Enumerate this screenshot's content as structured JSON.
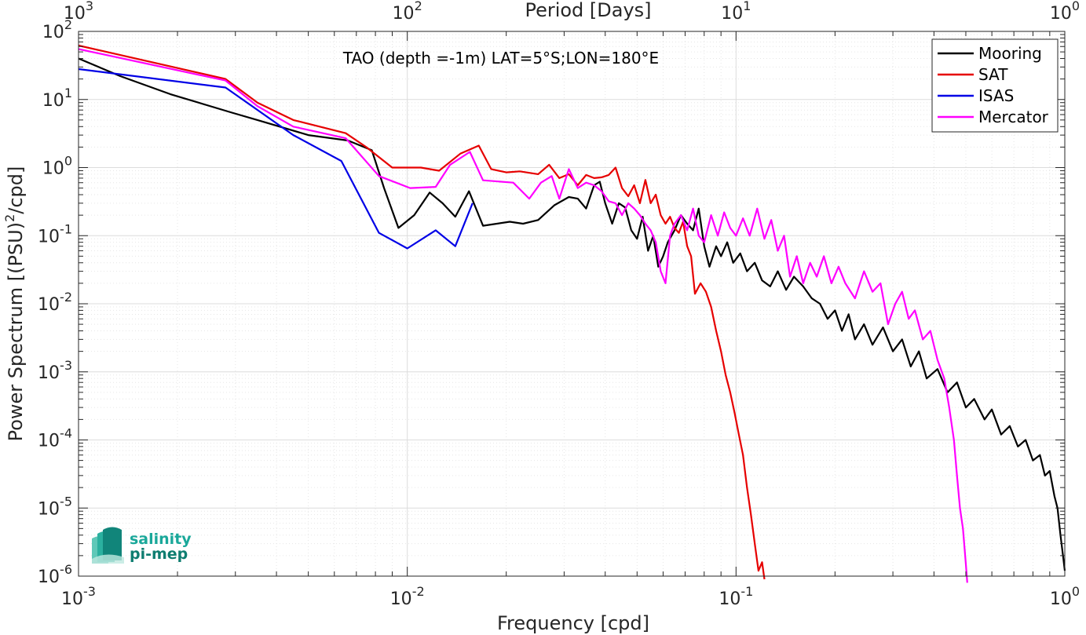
{
  "chart_data": {
    "type": "line",
    "title": "TAO (depth =-1m) LAT=5°S;LON=180°E",
    "xlabel": "Frequency [cpd]",
    "ylabel_main": "Power Spectrum [(PSU)",
    "ylabel_sup": "2",
    "ylabel_tail": "/cpd]",
    "top_xlabel": "Period [Days]",
    "x_scale": "log",
    "y_scale": "log",
    "xlim": [
      0.001,
      1
    ],
    "ylim": [
      1e-06,
      100
    ],
    "grid": true,
    "legend_position": "top-right",
    "x_ticks": [
      {
        "value": 0.001,
        "base": "10",
        "exp": "-3"
      },
      {
        "value": 0.01,
        "base": "10",
        "exp": "-2"
      },
      {
        "value": 0.1,
        "base": "10",
        "exp": "-1"
      },
      {
        "value": 1,
        "base": "10",
        "exp": "0"
      }
    ],
    "top_ticks": [
      {
        "value": 0.001,
        "base": "10",
        "exp": "3"
      },
      {
        "value": 0.01,
        "base": "10",
        "exp": "2"
      },
      {
        "value": 0.1,
        "base": "10",
        "exp": "1"
      },
      {
        "value": 1,
        "base": "10",
        "exp": "0"
      }
    ],
    "y_ticks": [
      {
        "value": 1e-06,
        "base": "10",
        "exp": "-6"
      },
      {
        "value": 1e-05,
        "base": "10",
        "exp": "-5"
      },
      {
        "value": 0.0001,
        "base": "10",
        "exp": "-4"
      },
      {
        "value": 0.001,
        "base": "10",
        "exp": "-3"
      },
      {
        "value": 0.01,
        "base": "10",
        "exp": "-2"
      },
      {
        "value": 0.1,
        "base": "10",
        "exp": "-1"
      },
      {
        "value": 1,
        "base": "10",
        "exp": "0"
      },
      {
        "value": 10,
        "base": "10",
        "exp": "1"
      },
      {
        "value": 100,
        "base": "10",
        "exp": "2"
      }
    ],
    "series": [
      {
        "name": "Mooring",
        "color": "#000000",
        "points": [
          [
            0.001,
            40
          ],
          [
            0.00134,
            22
          ],
          [
            0.0019,
            12
          ],
          [
            0.0029,
            6.5
          ],
          [
            0.0035,
            5
          ],
          [
            0.005,
            3
          ],
          [
            0.0066,
            2.5
          ],
          [
            0.0078,
            1.8
          ],
          [
            0.0085,
            0.5
          ],
          [
            0.0094,
            0.13
          ],
          [
            0.0105,
            0.2
          ],
          [
            0.0117,
            0.43
          ],
          [
            0.0128,
            0.3
          ],
          [
            0.014,
            0.19
          ],
          [
            0.0154,
            0.45
          ],
          [
            0.017,
            0.14
          ],
          [
            0.0205,
            0.16
          ],
          [
            0.0225,
            0.15
          ],
          [
            0.025,
            0.17
          ],
          [
            0.028,
            0.28
          ],
          [
            0.031,
            0.37
          ],
          [
            0.033,
            0.35
          ],
          [
            0.035,
            0.25
          ],
          [
            0.037,
            0.55
          ],
          [
            0.0385,
            0.62
          ],
          [
            0.04,
            0.3
          ],
          [
            0.042,
            0.15
          ],
          [
            0.044,
            0.3
          ],
          [
            0.046,
            0.26
          ],
          [
            0.048,
            0.12
          ],
          [
            0.05,
            0.09
          ],
          [
            0.052,
            0.19
          ],
          [
            0.054,
            0.06
          ],
          [
            0.056,
            0.1
          ],
          [
            0.058,
            0.035
          ],
          [
            0.06,
            0.05
          ],
          [
            0.062,
            0.08
          ],
          [
            0.065,
            0.12
          ],
          [
            0.068,
            0.2
          ],
          [
            0.071,
            0.15
          ],
          [
            0.074,
            0.12
          ],
          [
            0.077,
            0.25
          ],
          [
            0.08,
            0.07
          ],
          [
            0.083,
            0.035
          ],
          [
            0.087,
            0.07
          ],
          [
            0.09,
            0.05
          ],
          [
            0.094,
            0.08
          ],
          [
            0.098,
            0.04
          ],
          [
            0.103,
            0.055
          ],
          [
            0.108,
            0.03
          ],
          [
            0.114,
            0.04
          ],
          [
            0.12,
            0.022
          ],
          [
            0.127,
            0.018
          ],
          [
            0.134,
            0.03
          ],
          [
            0.142,
            0.016
          ],
          [
            0.15,
            0.025
          ],
          [
            0.16,
            0.018
          ],
          [
            0.17,
            0.012
          ],
          [
            0.18,
            0.01
          ],
          [
            0.19,
            0.006
          ],
          [
            0.2,
            0.008
          ],
          [
            0.21,
            0.004
          ],
          [
            0.22,
            0.007
          ],
          [
            0.23,
            0.003
          ],
          [
            0.245,
            0.005
          ],
          [
            0.26,
            0.0025
          ],
          [
            0.28,
            0.0045
          ],
          [
            0.3,
            0.002
          ],
          [
            0.32,
            0.003
          ],
          [
            0.34,
            0.0012
          ],
          [
            0.36,
            0.002
          ],
          [
            0.38,
            0.0008
          ],
          [
            0.41,
            0.0011
          ],
          [
            0.44,
            0.0005
          ],
          [
            0.47,
            0.0007
          ],
          [
            0.5,
            0.0003
          ],
          [
            0.53,
            0.0004
          ],
          [
            0.57,
            0.0002
          ],
          [
            0.6,
            0.00028
          ],
          [
            0.64,
            0.00012
          ],
          [
            0.68,
            0.00016
          ],
          [
            0.72,
            8e-05
          ],
          [
            0.76,
            0.0001
          ],
          [
            0.8,
            5e-05
          ],
          [
            0.84,
            6e-05
          ],
          [
            0.87,
            3e-05
          ],
          [
            0.9,
            3.5e-05
          ],
          [
            0.93,
            1.5e-05
          ],
          [
            0.95,
            1e-05
          ],
          [
            0.97,
            4e-06
          ],
          [
            0.99,
            1.8e-06
          ],
          [
            1.0,
            1.2e-06
          ]
        ]
      },
      {
        "name": "SAT",
        "color": "#e60000",
        "points": [
          [
            0.001,
            62
          ],
          [
            0.0028,
            20
          ],
          [
            0.0035,
            9
          ],
          [
            0.0045,
            5
          ],
          [
            0.0065,
            3.2
          ],
          [
            0.0075,
            2
          ],
          [
            0.009,
            1
          ],
          [
            0.0105,
            1
          ],
          [
            0.011,
            1
          ],
          [
            0.0125,
            0.9
          ],
          [
            0.0145,
            1.6
          ],
          [
            0.0165,
            2.1
          ],
          [
            0.018,
            0.95
          ],
          [
            0.02,
            0.85
          ],
          [
            0.022,
            0.88
          ],
          [
            0.025,
            0.8
          ],
          [
            0.027,
            1.1
          ],
          [
            0.029,
            0.7
          ],
          [
            0.031,
            0.8
          ],
          [
            0.033,
            0.55
          ],
          [
            0.035,
            0.78
          ],
          [
            0.037,
            0.7
          ],
          [
            0.039,
            0.72
          ],
          [
            0.041,
            0.78
          ],
          [
            0.043,
            1.0
          ],
          [
            0.045,
            0.5
          ],
          [
            0.047,
            0.38
          ],
          [
            0.049,
            0.55
          ],
          [
            0.051,
            0.3
          ],
          [
            0.053,
            0.66
          ],
          [
            0.055,
            0.3
          ],
          [
            0.057,
            0.4
          ],
          [
            0.059,
            0.2
          ],
          [
            0.061,
            0.15
          ],
          [
            0.063,
            0.19
          ],
          [
            0.065,
            0.13
          ],
          [
            0.067,
            0.11
          ],
          [
            0.069,
            0.16
          ],
          [
            0.071,
            0.07
          ],
          [
            0.073,
            0.05
          ],
          [
            0.075,
            0.014
          ],
          [
            0.078,
            0.02
          ],
          [
            0.081,
            0.015
          ],
          [
            0.084,
            0.009
          ],
          [
            0.087,
            0.004
          ],
          [
            0.09,
            0.002
          ],
          [
            0.093,
            0.0009
          ],
          [
            0.096,
            0.0005
          ],
          [
            0.099,
            0.00025
          ],
          [
            0.102,
            0.00012
          ],
          [
            0.105,
            6e-05
          ],
          [
            0.108,
            2e-05
          ],
          [
            0.111,
            8e-06
          ],
          [
            0.114,
            3e-06
          ],
          [
            0.117,
            1.2e-06
          ],
          [
            0.12,
            1.6e-06
          ],
          [
            0.122,
            9e-07
          ]
        ]
      },
      {
        "name": "ISAS",
        "color": "#0000e6",
        "points": [
          [
            0.001,
            28
          ],
          [
            0.0028,
            15
          ],
          [
            0.0045,
            3
          ],
          [
            0.0063,
            1.25
          ],
          [
            0.0082,
            0.11
          ],
          [
            0.01,
            0.065
          ],
          [
            0.0122,
            0.12
          ],
          [
            0.014,
            0.07
          ],
          [
            0.0158,
            0.3
          ]
        ]
      },
      {
        "name": "Mercator",
        "color": "#ff00ff",
        "points": [
          [
            0.001,
            55
          ],
          [
            0.0028,
            19
          ],
          [
            0.0035,
            8
          ],
          [
            0.0045,
            4
          ],
          [
            0.0065,
            2.7
          ],
          [
            0.0082,
            0.75
          ],
          [
            0.0102,
            0.5
          ],
          [
            0.0122,
            0.52
          ],
          [
            0.0135,
            1.1
          ],
          [
            0.0155,
            1.7
          ],
          [
            0.017,
            0.65
          ],
          [
            0.021,
            0.6
          ],
          [
            0.0235,
            0.35
          ],
          [
            0.0255,
            0.6
          ],
          [
            0.0275,
            0.75
          ],
          [
            0.029,
            0.35
          ],
          [
            0.031,
            0.95
          ],
          [
            0.033,
            0.5
          ],
          [
            0.035,
            0.6
          ],
          [
            0.037,
            0.55
          ],
          [
            0.039,
            0.45
          ],
          [
            0.041,
            0.32
          ],
          [
            0.043,
            0.3
          ],
          [
            0.045,
            0.2
          ],
          [
            0.047,
            0.3
          ],
          [
            0.049,
            0.25
          ],
          [
            0.051,
            0.2
          ],
          [
            0.053,
            0.15
          ],
          [
            0.055,
            0.12
          ],
          [
            0.057,
            0.08
          ],
          [
            0.059,
            0.03
          ],
          [
            0.061,
            0.02
          ],
          [
            0.063,
            0.1
          ],
          [
            0.065,
            0.15
          ],
          [
            0.068,
            0.2
          ],
          [
            0.071,
            0.12
          ],
          [
            0.074,
            0.25
          ],
          [
            0.077,
            0.1
          ],
          [
            0.08,
            0.08
          ],
          [
            0.084,
            0.2
          ],
          [
            0.088,
            0.1
          ],
          [
            0.092,
            0.22
          ],
          [
            0.096,
            0.13
          ],
          [
            0.1,
            0.1
          ],
          [
            0.105,
            0.18
          ],
          [
            0.11,
            0.1
          ],
          [
            0.116,
            0.25
          ],
          [
            0.122,
            0.09
          ],
          [
            0.128,
            0.17
          ],
          [
            0.134,
            0.06
          ],
          [
            0.14,
            0.1
          ],
          [
            0.146,
            0.025
          ],
          [
            0.153,
            0.05
          ],
          [
            0.16,
            0.02
          ],
          [
            0.168,
            0.04
          ],
          [
            0.176,
            0.025
          ],
          [
            0.185,
            0.05
          ],
          [
            0.195,
            0.02
          ],
          [
            0.205,
            0.035
          ],
          [
            0.215,
            0.02
          ],
          [
            0.23,
            0.012
          ],
          [
            0.245,
            0.03
          ],
          [
            0.26,
            0.015
          ],
          [
            0.275,
            0.02
          ],
          [
            0.29,
            0.005
          ],
          [
            0.305,
            0.01
          ],
          [
            0.32,
            0.015
          ],
          [
            0.335,
            0.006
          ],
          [
            0.35,
            0.008
          ],
          [
            0.37,
            0.003
          ],
          [
            0.39,
            0.004
          ],
          [
            0.41,
            0.0015
          ],
          [
            0.43,
            0.0008
          ],
          [
            0.445,
            0.0003
          ],
          [
            0.46,
            0.0001
          ],
          [
            0.47,
            3e-05
          ],
          [
            0.48,
            1e-05
          ],
          [
            0.49,
            5e-06
          ],
          [
            0.5,
            1.5e-06
          ],
          [
            0.505,
            8e-07
          ]
        ]
      }
    ]
  },
  "logo": {
    "line1": "salinity",
    "line2": "pi-mep",
    "color_primary": "#1aa89a",
    "color_secondary": "#0e7d70"
  }
}
